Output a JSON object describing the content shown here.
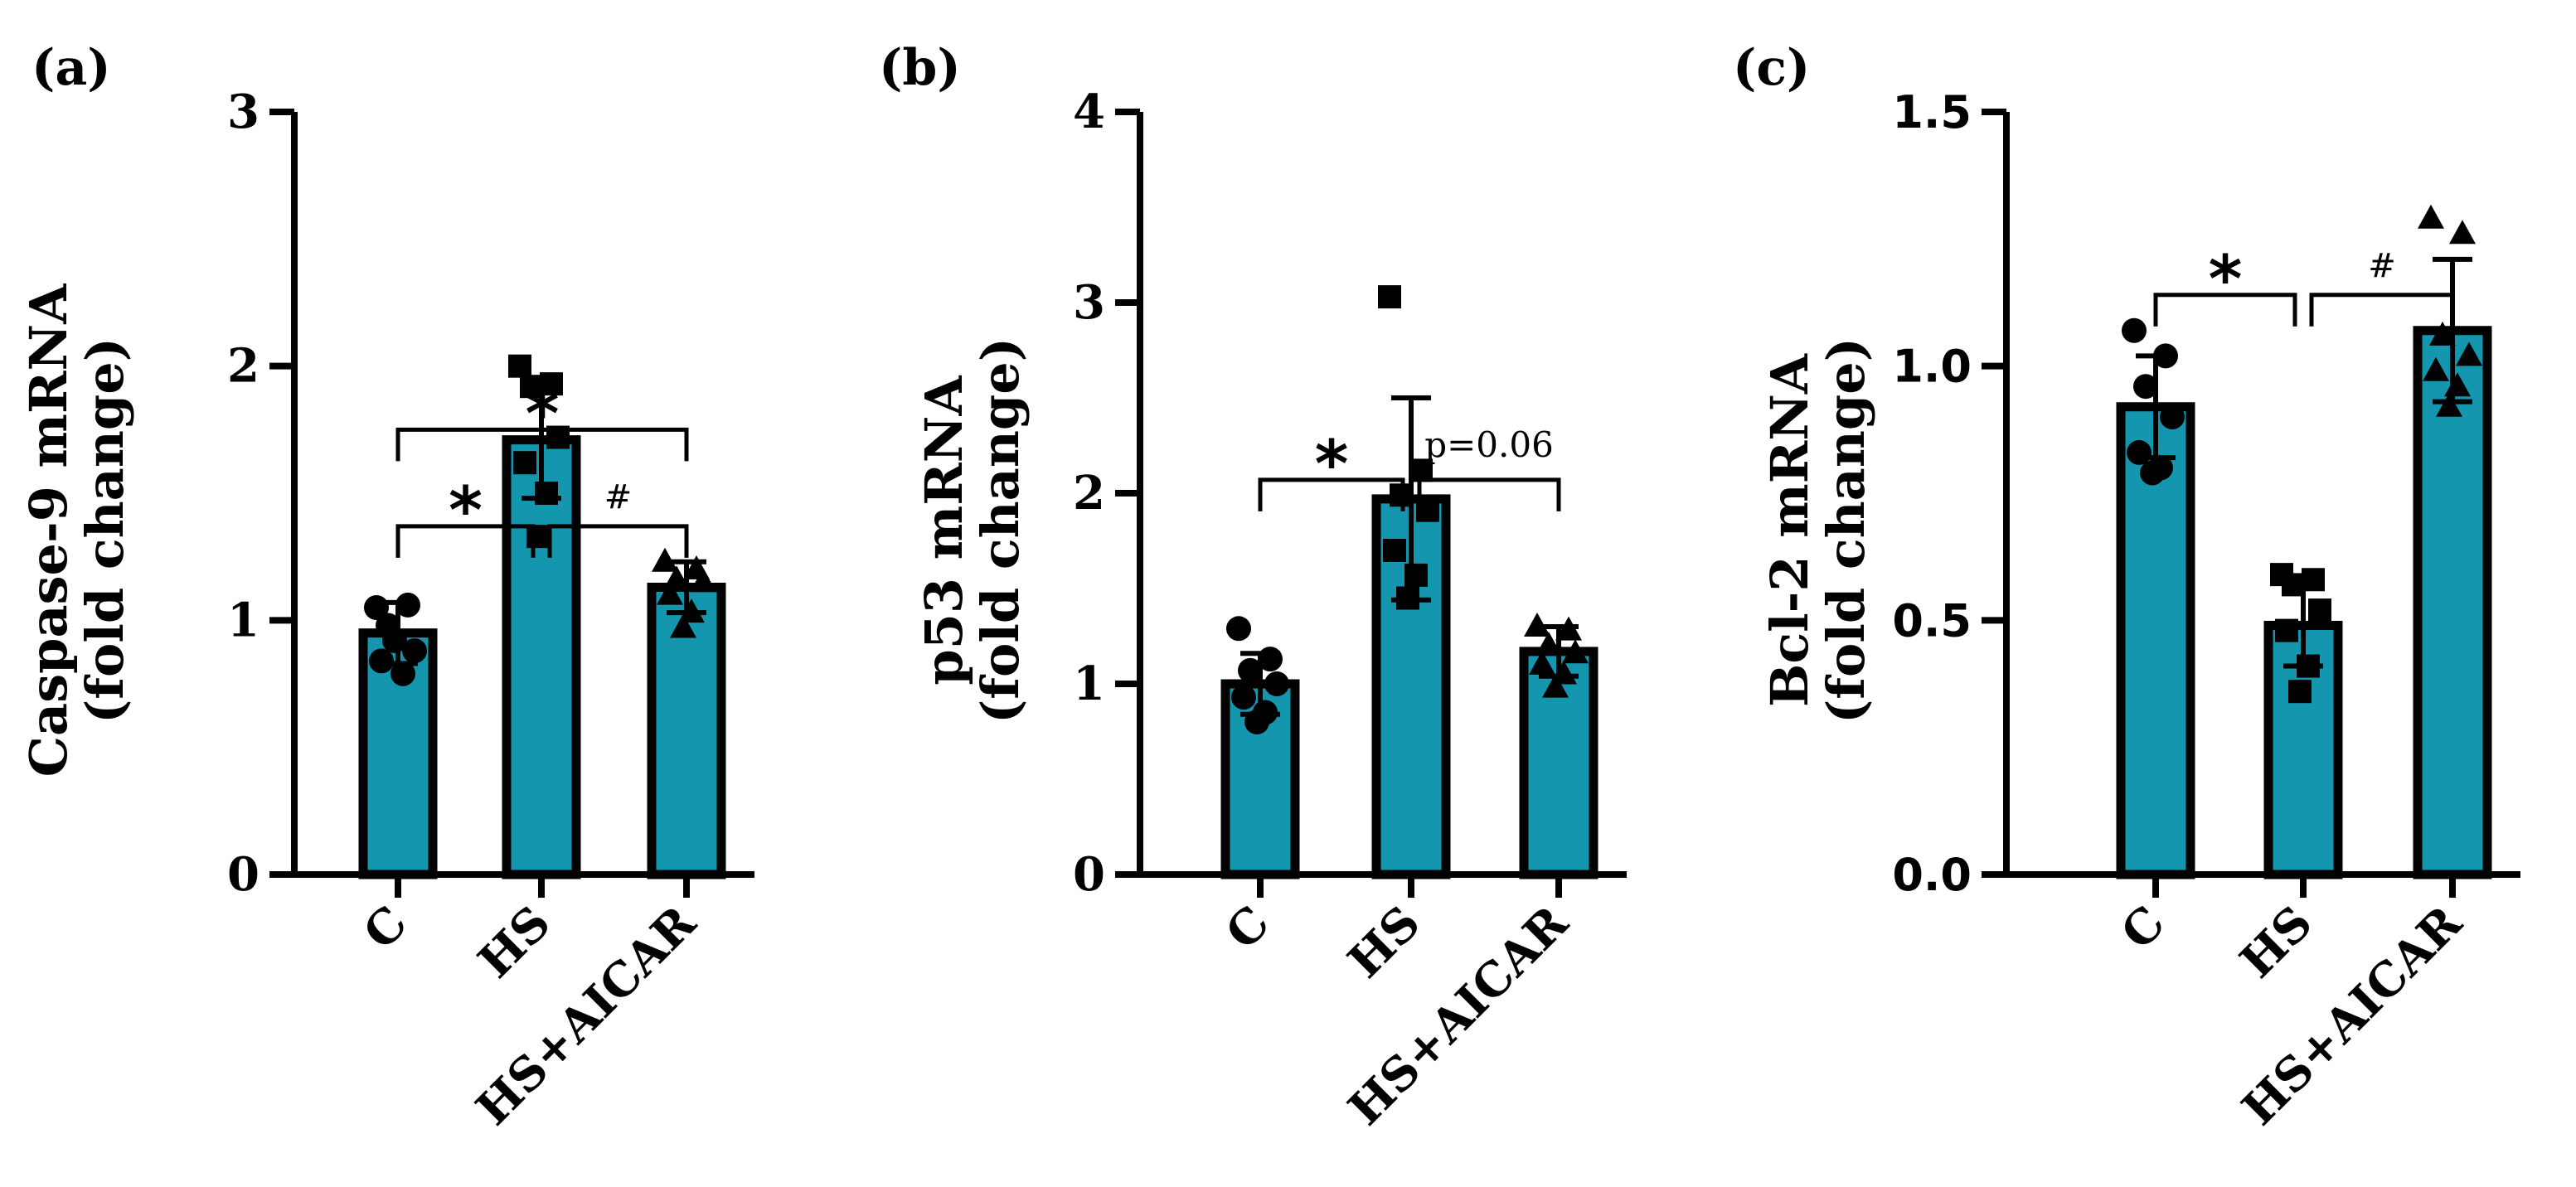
{
  "colors": {
    "bar": "#1497AE",
    "ink": "#000000"
  },
  "chart_data": [
    {
      "panel": "(a)",
      "type": "bar",
      "ylabel_lines": [
        "Caspase-9 mRNA",
        "(fold change)"
      ],
      "ylim": [
        0,
        3
      ],
      "yticks": [
        0,
        1,
        2,
        3
      ],
      "ytick_labels": [
        "0",
        "1",
        "2",
        "3"
      ],
      "tick_style": "serif",
      "categories": [
        "C",
        "HS",
        "HS+AICAR"
      ],
      "values": [
        0.95,
        1.71,
        1.13
      ],
      "errors": [
        0.12,
        0.23,
        0.1
      ],
      "markers": [
        "circle",
        "square",
        "triangle"
      ],
      "points": [
        [
          1.05,
          1.06,
          0.98,
          0.88,
          0.84,
          0.79,
          0.92
        ],
        [
          2.0,
          1.93,
          1.92,
          1.72,
          1.62,
          1.5,
          1.33
        ],
        [
          1.23,
          1.2,
          1.16,
          1.15,
          1.1,
          1.03,
          0.97
        ]
      ],
      "comparisons": [
        {
          "from": 0,
          "to": 1,
          "y": 1.37,
          "mark": "*",
          "kind": "star"
        },
        {
          "from": 1,
          "to": 2,
          "y": 1.37,
          "mark": "#",
          "kind": "hash"
        },
        {
          "from": 0,
          "to": 2,
          "y": 1.75,
          "mark": "*",
          "kind": "star"
        }
      ]
    },
    {
      "panel": "(b)",
      "type": "bar",
      "ylabel_lines": [
        "p53 mRNA",
        "(fold change)"
      ],
      "ylim": [
        0,
        4
      ],
      "yticks": [
        0,
        1,
        2,
        3,
        4
      ],
      "ytick_labels": [
        "0",
        "1",
        "2",
        "3",
        "4"
      ],
      "tick_style": "serif",
      "categories": [
        "C",
        "HS",
        "HS+AICAR"
      ],
      "values": [
        1.0,
        1.97,
        1.17
      ],
      "errors": [
        0.16,
        0.53,
        0.13
      ],
      "markers": [
        "circle",
        "square",
        "triangle"
      ],
      "points": [
        [
          1.29,
          1.13,
          1.07,
          1.0,
          0.93,
          0.85,
          0.8
        ],
        [
          3.03,
          2.12,
          1.99,
          1.91,
          1.7,
          1.57,
          1.45
        ],
        [
          1.3,
          1.28,
          1.2,
          1.16,
          1.1,
          1.05,
          0.98
        ]
      ],
      "comparisons": [
        {
          "from": 0,
          "to": 1,
          "y": 2.07,
          "mark": "*",
          "kind": "star"
        },
        {
          "from": 1,
          "to": 2,
          "y": 2.07,
          "mark": "p=0.06",
          "kind": "p"
        }
      ]
    },
    {
      "panel": "(c)",
      "type": "bar",
      "ylabel_lines": [
        "Bcl-2 mRNA",
        "(fold change)"
      ],
      "ylim": [
        0,
        1.5
      ],
      "yticks": [
        0,
        0.5,
        1.0,
        1.5
      ],
      "ytick_labels": [
        "0.0",
        "0.5",
        "1.0",
        "1.5"
      ],
      "tick_style": "sans",
      "categories": [
        "C",
        "HS",
        "HS+AICAR"
      ],
      "values": [
        0.92,
        0.49,
        1.07
      ],
      "errors": [
        0.1,
        0.08,
        0.14
      ],
      "markers": [
        "circle",
        "square",
        "triangle"
      ],
      "points": [
        [
          1.07,
          1.02,
          0.96,
          0.9,
          0.83,
          0.8,
          0.79
        ],
        [
          0.59,
          0.58,
          0.57,
          0.52,
          0.48,
          0.41,
          0.36
        ],
        [
          1.29,
          1.26,
          1.06,
          1.02,
          0.99,
          0.96,
          0.92
        ]
      ],
      "comparisons": [
        {
          "from": 0,
          "to": 1,
          "y": 1.14,
          "mark": "*",
          "kind": "star"
        },
        {
          "from": 1,
          "to": 2,
          "y": 1.14,
          "mark": "#",
          "kind": "hash"
        }
      ]
    }
  ]
}
